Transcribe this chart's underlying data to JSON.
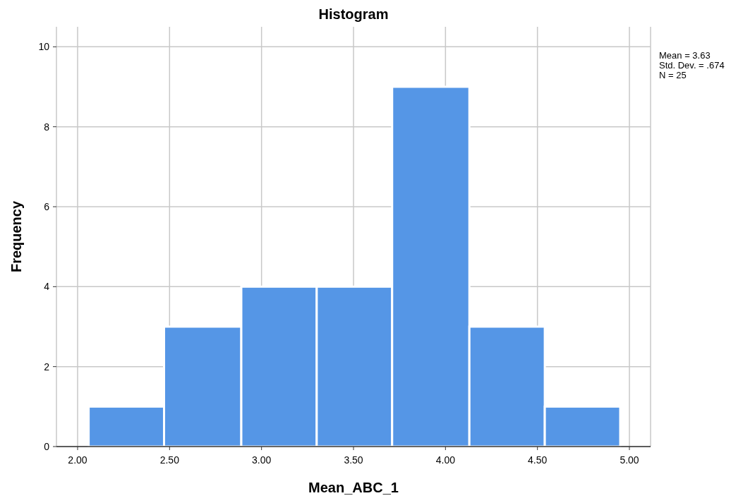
{
  "chart_data": {
    "type": "histogram",
    "title": "Histogram",
    "xlabel": "Mean_ABC_1",
    "ylabel": "Frequency",
    "bins": [
      2.06,
      2.47,
      2.89,
      3.3,
      3.71,
      4.13,
      4.54,
      4.95
    ],
    "values": [
      1,
      3,
      4,
      4,
      9,
      3,
      1
    ],
    "color": "#5596e6",
    "xlim": [
      1.885,
      5.115
    ],
    "xticks": [
      {
        "value": 2,
        "label": "2.00"
      },
      {
        "value": 2.5,
        "label": "2.50"
      },
      {
        "value": 3,
        "label": "3.00"
      },
      {
        "value": 3.5,
        "label": "3.50"
      },
      {
        "value": 4,
        "label": "4.00"
      },
      {
        "value": 4.5,
        "label": "4.50"
      },
      {
        "value": 5,
        "label": "5.00"
      }
    ],
    "ylim": [
      0,
      10.5
    ],
    "yticks": [
      0,
      2,
      4,
      6,
      8,
      10
    ],
    "grid": true,
    "annotations": [
      "Mean = 3.63",
      "Std. Dev. = .674",
      "N = 25"
    ]
  }
}
